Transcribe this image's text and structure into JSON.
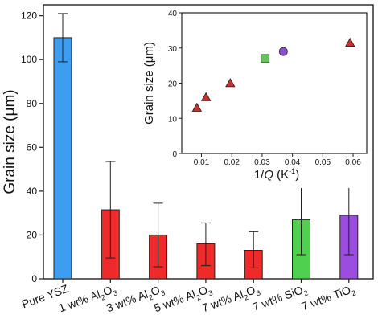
{
  "chart_data": [
    {
      "type": "bar",
      "title": "",
      "xlabel": "",
      "ylabel": "Grain size (μm)",
      "ylim": [
        0,
        125
      ],
      "yticks": [
        0,
        20,
        40,
        60,
        80,
        100,
        120
      ],
      "grid": false,
      "categories": [
        {
          "base": "Pure YSZ",
          "sub": "",
          "tail": ""
        },
        {
          "base": "1 wt% Al",
          "sub": "2",
          "tail": "O",
          "sub2": "3"
        },
        {
          "base": "3 wt% Al",
          "sub": "2",
          "tail": "O",
          "sub2": "3"
        },
        {
          "base": "5 wt% Al",
          "sub": "2",
          "tail": "O",
          "sub2": "3"
        },
        {
          "base": "7 wt% Al",
          "sub": "2",
          "tail": "O",
          "sub2": "3"
        },
        {
          "base": "7 wt% SiO",
          "sub": "2",
          "tail": "",
          "sub2": ""
        },
        {
          "base": "7 wt% TiO",
          "sub": "2",
          "tail": "",
          "sub2": ""
        }
      ],
      "values": [
        110,
        31.5,
        20,
        16,
        13,
        27,
        29
      ],
      "error_low": [
        99,
        9.5,
        5.5,
        6,
        5,
        11,
        11
      ],
      "error_high": [
        121,
        53.5,
        34.5,
        25.5,
        21.5,
        43.5,
        47
      ],
      "colors": [
        "#3d9df0",
        "#ee2a2a",
        "#ee2a2a",
        "#ee2a2a",
        "#ee2a2a",
        "#4fd04f",
        "#9b4de0"
      ]
    },
    {
      "type": "scatter",
      "title": "",
      "xlabel_prefix": "1/",
      "xlabel_var": "Q",
      "xlabel_unit": " (K",
      "xlabel_sup": "-1",
      "xlabel_close": ")",
      "ylabel": "Grain size (μm)",
      "xlim": [
        0.0035,
        0.0645
      ],
      "ylim": [
        0,
        40
      ],
      "xticks": [
        "0.01",
        "0.02",
        "0.03",
        "0.04",
        "0.05",
        "0.06"
      ],
      "yticks": [
        0,
        10,
        20,
        30,
        40
      ],
      "grid": false,
      "points": [
        {
          "x": 0.0085,
          "y": 13,
          "marker": "triangle",
          "color": "#c03434"
        },
        {
          "x": 0.0115,
          "y": 16,
          "marker": "triangle",
          "color": "#c03434"
        },
        {
          "x": 0.0195,
          "y": 20,
          "marker": "triangle",
          "color": "#c03434"
        },
        {
          "x": 0.031,
          "y": 27,
          "marker": "square",
          "color": "#66c25a"
        },
        {
          "x": 0.037,
          "y": 29,
          "marker": "circle",
          "color": "#8a52c8"
        },
        {
          "x": 0.059,
          "y": 31.5,
          "marker": "triangle",
          "color": "#c03434"
        }
      ]
    }
  ]
}
